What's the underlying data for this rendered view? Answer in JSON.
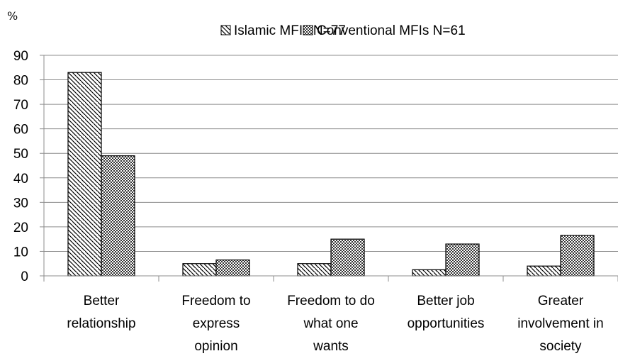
{
  "chart_data": {
    "type": "bar",
    "ylabel": "%",
    "ylim": [
      0,
      90
    ],
    "yticks": [
      "0",
      "10",
      "20",
      "30",
      "40",
      "50",
      "60",
      "70",
      "80",
      "90"
    ],
    "grid": true,
    "legend_position": "top-center",
    "categories": [
      [
        "Better",
        "relationship"
      ],
      [
        "Freedom to",
        "express",
        "opinion"
      ],
      [
        "Freedom to do",
        "what one",
        "wants"
      ],
      [
        "Better job",
        "opportunities"
      ],
      [
        "Greater",
        "involvement in",
        "society"
      ]
    ],
    "series": [
      {
        "name": "Islamic MFIs N=77",
        "pattern": "diagonal-hatch",
        "values": [
          83,
          5,
          5,
          2.5,
          4
        ]
      },
      {
        "name": "Conventional MFIs N=61",
        "pattern": "checker",
        "values": [
          49,
          6.5,
          15,
          13,
          16.5
        ]
      }
    ]
  }
}
